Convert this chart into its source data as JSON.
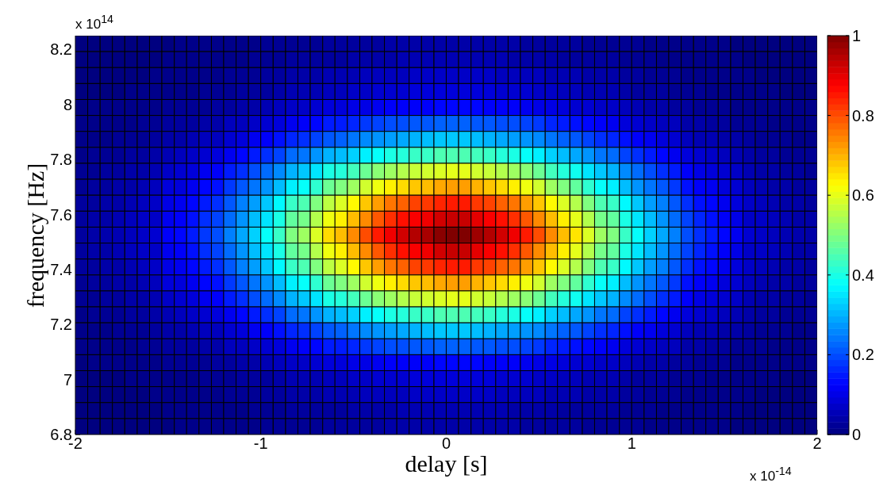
{
  "chart_data": {
    "type": "heatmap",
    "xlabel": "delay [s]",
    "ylabel": "frequency [Hz]",
    "annotations": [
      "x 10$^{14}$",
      "x 10$^{-14}$"
    ],
    "x": [
      -1.967,
      -1.9,
      -1.833,
      -1.767,
      -1.7,
      -1.633,
      -1.567,
      -1.5,
      -1.433,
      -1.367,
      -1.3,
      -1.233,
      -1.167,
      -1.1,
      -1.033,
      -0.967,
      -0.9,
      -0.833,
      -0.767,
      -0.7,
      -0.633,
      -0.567,
      -0.5,
      -0.433,
      -0.367,
      -0.3,
      -0.233,
      -0.167,
      -0.1,
      -0.033,
      0.033,
      0.1,
      0.167,
      0.233,
      0.3,
      0.367,
      0.433,
      0.5,
      0.567,
      0.633,
      0.7,
      0.767,
      0.833,
      0.9,
      0.967,
      1.033,
      1.1,
      1.167,
      1.233,
      1.3,
      1.367,
      1.433,
      1.5,
      1.567,
      1.633,
      1.7,
      1.767,
      1.833,
      1.9,
      1.967
    ],
    "y": [
      8.221,
      8.163,
      8.105,
      8.047,
      7.989,
      7.931,
      7.873,
      7.815,
      7.757,
      7.699,
      7.641,
      7.583,
      7.525,
      7.467,
      7.409,
      7.351,
      7.293,
      7.235,
      7.177,
      7.119,
      7.061,
      7.003,
      6.945,
      6.887,
      6.829
    ],
    "xlim": [
      -2,
      2
    ],
    "xticks": [
      -2,
      -1,
      0,
      1,
      2
    ],
    "ylim": [
      6.8,
      8.25
    ],
    "yticks": [
      6.8,
      7,
      7.2,
      7.4,
      7.6,
      7.8,
      8,
      8.2
    ],
    "clim": [
      0,
      1
    ],
    "cticks": [
      0,
      0.2,
      0.4,
      0.6,
      0.8,
      1
    ],
    "cells": [
      [
        0,
        0,
        0,
        0,
        0,
        0,
        0,
        0,
        0.01,
        0.01,
        0.01,
        0.01,
        0.01,
        0.01,
        0.01,
        0.02,
        0.02,
        0.02,
        0.02,
        0.02,
        0.03,
        0.03,
        0.03,
        0.03,
        0.03,
        0.04,
        0.04,
        0.04,
        0.04,
        0.04,
        0.04,
        0.04,
        0.04,
        0.04,
        0.04,
        0.04,
        0.03,
        0.03,
        0.03,
        0.03,
        0.03,
        0.02,
        0.02,
        0.02,
        0.02,
        0.02,
        0.01,
        0.01,
        0.01,
        0.01,
        0.01,
        0.01,
        0.01,
        0,
        0,
        0,
        0,
        0,
        0,
        0
      ],
      [
        0,
        0,
        0,
        0,
        0,
        0,
        0,
        0.01,
        0.01,
        0.01,
        0.01,
        0.01,
        0.01,
        0.01,
        0.02,
        0.02,
        0.02,
        0.03,
        0.03,
        0.03,
        0.03,
        0.03,
        0.04,
        0.04,
        0.04,
        0.04,
        0.05,
        0.05,
        0.05,
        0.05,
        0.05,
        0.05,
        0.05,
        0.05,
        0.05,
        0.04,
        0.04,
        0.04,
        0.04,
        0.03,
        0.03,
        0.03,
        0.03,
        0.03,
        0.02,
        0.02,
        0.02,
        0.01,
        0.01,
        0.01,
        0.01,
        0.01,
        0.01,
        0.01,
        0,
        0,
        0,
        0,
        0,
        0
      ],
      [
        0,
        0,
        0,
        0,
        0,
        0,
        0.01,
        0.01,
        0.01,
        0.01,
        0.01,
        0.01,
        0.02,
        0.02,
        0.02,
        0.03,
        0.03,
        0.04,
        0.04,
        0.04,
        0.05,
        0.05,
        0.05,
        0.06,
        0.06,
        0.06,
        0.06,
        0.07,
        0.07,
        0.07,
        0.07,
        0.07,
        0.07,
        0.07,
        0.06,
        0.06,
        0.06,
        0.06,
        0.05,
        0.05,
        0.05,
        0.04,
        0.04,
        0.04,
        0.03,
        0.03,
        0.02,
        0.02,
        0.02,
        0.01,
        0.01,
        0.01,
        0.01,
        0.01,
        0.01,
        0,
        0,
        0,
        0,
        0
      ],
      [
        0,
        0,
        0,
        0,
        0.01,
        0.01,
        0.01,
        0.01,
        0.01,
        0.01,
        0.02,
        0.02,
        0.02,
        0.03,
        0.03,
        0.03,
        0.04,
        0.05,
        0.05,
        0.05,
        0.06,
        0.06,
        0.07,
        0.07,
        0.08,
        0.08,
        0.08,
        0.09,
        0.09,
        0.09,
        0.09,
        0.09,
        0.09,
        0.09,
        0.08,
        0.08,
        0.08,
        0.07,
        0.07,
        0.06,
        0.06,
        0.05,
        0.05,
        0.05,
        0.04,
        0.03,
        0.03,
        0.03,
        0.02,
        0.02,
        0.02,
        0.01,
        0.01,
        0.01,
        0.01,
        0.01,
        0.01,
        0,
        0,
        0
      ],
      [
        0,
        0.01,
        0.01,
        0.01,
        0.01,
        0.01,
        0.01,
        0.02,
        0.02,
        0.02,
        0.02,
        0.03,
        0.03,
        0.04,
        0.04,
        0.05,
        0.06,
        0.07,
        0.07,
        0.08,
        0.09,
        0.09,
        0.1,
        0.1,
        0.11,
        0.12,
        0.12,
        0.12,
        0.12,
        0.13,
        0.13,
        0.13,
        0.13,
        0.12,
        0.12,
        0.12,
        0.11,
        0.1,
        0.1,
        0.09,
        0.08,
        0.08,
        0.07,
        0.07,
        0.06,
        0.05,
        0.04,
        0.04,
        0.03,
        0.03,
        0.02,
        0.02,
        0.02,
        0.01,
        0.01,
        0.01,
        0.01,
        0.01,
        0.01,
        0.01
      ],
      [
        0.01,
        0.01,
        0.01,
        0.01,
        0.01,
        0.02,
        0.02,
        0.03,
        0.03,
        0.03,
        0.04,
        0.04,
        0.06,
        0.06,
        0.07,
        0.08,
        0.09,
        0.11,
        0.12,
        0.13,
        0.15,
        0.15,
        0.16,
        0.18,
        0.19,
        0.2,
        0.2,
        0.21,
        0.21,
        0.22,
        0.22,
        0.22,
        0.21,
        0.21,
        0.2,
        0.2,
        0.19,
        0.18,
        0.16,
        0.15,
        0.14,
        0.13,
        0.12,
        0.11,
        0.09,
        0.08,
        0.07,
        0.06,
        0.06,
        0.04,
        0.04,
        0.03,
        0.03,
        0.02,
        0.02,
        0.02,
        0.01,
        0.01,
        0.01,
        0.01
      ],
      [
        0.01,
        0.01,
        0.01,
        0.02,
        0.02,
        0.02,
        0.03,
        0.04,
        0.04,
        0.05,
        0.06,
        0.06,
        0.08,
        0.09,
        0.11,
        0.12,
        0.14,
        0.16,
        0.17,
        0.19,
        0.21,
        0.22,
        0.24,
        0.26,
        0.27,
        0.28,
        0.29,
        0.3,
        0.31,
        0.32,
        0.32,
        0.32,
        0.31,
        0.3,
        0.29,
        0.28,
        0.27,
        0.26,
        0.24,
        0.22,
        0.21,
        0.19,
        0.17,
        0.16,
        0.14,
        0.12,
        0.11,
        0.09,
        0.08,
        0.06,
        0.05,
        0.05,
        0.04,
        0.04,
        0.03,
        0.02,
        0.02,
        0.02,
        0.01,
        0.01
      ],
      [
        0.01,
        0.02,
        0.02,
        0.02,
        0.03,
        0.03,
        0.04,
        0.05,
        0.06,
        0.07,
        0.08,
        0.09,
        0.11,
        0.13,
        0.15,
        0.17,
        0.19,
        0.23,
        0.24,
        0.27,
        0.3,
        0.31,
        0.33,
        0.36,
        0.38,
        0.4,
        0.41,
        0.43,
        0.43,
        0.45,
        0.45,
        0.45,
        0.44,
        0.43,
        0.41,
        0.4,
        0.38,
        0.36,
        0.33,
        0.31,
        0.29,
        0.27,
        0.24,
        0.23,
        0.19,
        0.17,
        0.15,
        0.13,
        0.11,
        0.09,
        0.08,
        0.07,
        0.06,
        0.05,
        0.04,
        0.03,
        0.03,
        0.02,
        0.02,
        0.02
      ],
      [
        0.02,
        0.02,
        0.03,
        0.03,
        0.04,
        0.04,
        0.05,
        0.07,
        0.08,
        0.09,
        0.11,
        0.12,
        0.15,
        0.17,
        0.2,
        0.23,
        0.26,
        0.3,
        0.32,
        0.35,
        0.4,
        0.41,
        0.44,
        0.48,
        0.51,
        0.53,
        0.55,
        0.57,
        0.58,
        0.59,
        0.6,
        0.6,
        0.58,
        0.57,
        0.55,
        0.53,
        0.51,
        0.48,
        0.44,
        0.41,
        0.39,
        0.35,
        0.32,
        0.3,
        0.26,
        0.23,
        0.2,
        0.17,
        0.15,
        0.12,
        0.1,
        0.09,
        0.08,
        0.07,
        0.05,
        0.04,
        0.04,
        0.03,
        0.03,
        0.02
      ],
      [
        0.02,
        0.03,
        0.03,
        0.04,
        0.04,
        0.05,
        0.06,
        0.09,
        0.09,
        0.11,
        0.13,
        0.14,
        0.18,
        0.21,
        0.24,
        0.27,
        0.31,
        0.36,
        0.38,
        0.42,
        0.48,
        0.5,
        0.53,
        0.58,
        0.61,
        0.64,
        0.66,
        0.68,
        0.69,
        0.71,
        0.72,
        0.72,
        0.7,
        0.68,
        0.66,
        0.64,
        0.61,
        0.58,
        0.53,
        0.5,
        0.47,
        0.42,
        0.38,
        0.36,
        0.31,
        0.27,
        0.24,
        0.21,
        0.18,
        0.14,
        0.12,
        0.11,
        0.09,
        0.08,
        0.06,
        0.05,
        0.04,
        0.04,
        0.03,
        0.03
      ],
      [
        0.03,
        0.03,
        0.04,
        0.04,
        0.05,
        0.06,
        0.07,
        0.1,
        0.11,
        0.13,
        0.15,
        0.17,
        0.21,
        0.25,
        0.28,
        0.32,
        0.37,
        0.43,
        0.45,
        0.5,
        0.56,
        0.59,
        0.63,
        0.68,
        0.72,
        0.76,
        0.78,
        0.81,
        0.82,
        0.84,
        0.85,
        0.85,
        0.82,
        0.81,
        0.78,
        0.76,
        0.72,
        0.68,
        0.63,
        0.59,
        0.55,
        0.5,
        0.45,
        0.43,
        0.37,
        0.32,
        0.28,
        0.25,
        0.21,
        0.17,
        0.14,
        0.13,
        0.11,
        0.09,
        0.07,
        0.06,
        0.05,
        0.04,
        0.04,
        0.03
      ],
      [
        0.03,
        0.04,
        0.04,
        0.05,
        0.06,
        0.07,
        0.07,
        0.11,
        0.12,
        0.14,
        0.17,
        0.19,
        0.23,
        0.27,
        0.31,
        0.35,
        0.4,
        0.47,
        0.49,
        0.55,
        0.61,
        0.64,
        0.69,
        0.74,
        0.79,
        0.83,
        0.86,
        0.88,
        0.89,
        0.92,
        0.93,
        0.93,
        0.9,
        0.88,
        0.86,
        0.83,
        0.79,
        0.74,
        0.69,
        0.64,
        0.6,
        0.55,
        0.49,
        0.47,
        0.4,
        0.35,
        0.31,
        0.27,
        0.23,
        0.19,
        0.16,
        0.14,
        0.12,
        0.1,
        0.07,
        0.07,
        0.06,
        0.05,
        0.04,
        0.04
      ],
      [
        0.03,
        0.04,
        0.045,
        0.05,
        0.06,
        0.07,
        0.08,
        0.12,
        0.13,
        0.15,
        0.18,
        0.2,
        0.25,
        0.29,
        0.33,
        0.38,
        0.43,
        0.5,
        0.53,
        0.59,
        0.66,
        0.69,
        0.74,
        0.8,
        0.85,
        0.89,
        0.92,
        0.95,
        0.96,
        0.99,
        1,
        1,
        0.97,
        0.95,
        0.92,
        0.89,
        0.85,
        0.8,
        0.74,
        0.69,
        0.65,
        0.59,
        0.53,
        0.5,
        0.43,
        0.38,
        0.33,
        0.29,
        0.25,
        0.2,
        0.17,
        0.15,
        0.13,
        0.11,
        0.08,
        0.07,
        0.06,
        0.05,
        0.045,
        0.04
      ],
      [
        0.03,
        0.04,
        0.04,
        0.05,
        0.06,
        0.07,
        0.07,
        0.11,
        0.12,
        0.14,
        0.17,
        0.19,
        0.23,
        0.27,
        0.31,
        0.35,
        0.4,
        0.47,
        0.49,
        0.55,
        0.61,
        0.64,
        0.69,
        0.74,
        0.79,
        0.83,
        0.86,
        0.88,
        0.89,
        0.92,
        0.93,
        0.93,
        0.9,
        0.88,
        0.86,
        0.83,
        0.79,
        0.74,
        0.69,
        0.64,
        0.6,
        0.55,
        0.49,
        0.47,
        0.4,
        0.35,
        0.31,
        0.27,
        0.23,
        0.19,
        0.16,
        0.14,
        0.12,
        0.1,
        0.07,
        0.07,
        0.06,
        0.05,
        0.04,
        0.04
      ],
      [
        0.03,
        0.03,
        0.04,
        0.04,
        0.05,
        0.06,
        0.07,
        0.1,
        0.11,
        0.13,
        0.15,
        0.17,
        0.21,
        0.25,
        0.28,
        0.32,
        0.37,
        0.43,
        0.45,
        0.5,
        0.56,
        0.59,
        0.63,
        0.68,
        0.72,
        0.76,
        0.78,
        0.81,
        0.82,
        0.84,
        0.85,
        0.85,
        0.82,
        0.81,
        0.78,
        0.76,
        0.72,
        0.68,
        0.63,
        0.59,
        0.55,
        0.5,
        0.45,
        0.43,
        0.37,
        0.32,
        0.28,
        0.25,
        0.21,
        0.17,
        0.14,
        0.13,
        0.11,
        0.09,
        0.07,
        0.06,
        0.05,
        0.04,
        0.04,
        0.03
      ],
      [
        0.02,
        0.03,
        0.03,
        0.04,
        0.04,
        0.05,
        0.06,
        0.09,
        0.09,
        0.11,
        0.13,
        0.14,
        0.18,
        0.21,
        0.24,
        0.27,
        0.31,
        0.36,
        0.38,
        0.42,
        0.48,
        0.5,
        0.53,
        0.58,
        0.61,
        0.64,
        0.66,
        0.68,
        0.69,
        0.71,
        0.72,
        0.72,
        0.7,
        0.68,
        0.66,
        0.64,
        0.61,
        0.58,
        0.53,
        0.5,
        0.47,
        0.42,
        0.38,
        0.36,
        0.31,
        0.27,
        0.24,
        0.21,
        0.18,
        0.14,
        0.12,
        0.11,
        0.09,
        0.08,
        0.06,
        0.05,
        0.04,
        0.04,
        0.03,
        0.03
      ],
      [
        0.02,
        0.02,
        0.03,
        0.03,
        0.04,
        0.04,
        0.05,
        0.07,
        0.08,
        0.09,
        0.11,
        0.12,
        0.15,
        0.17,
        0.2,
        0.23,
        0.26,
        0.3,
        0.32,
        0.35,
        0.4,
        0.41,
        0.44,
        0.48,
        0.51,
        0.53,
        0.55,
        0.57,
        0.58,
        0.59,
        0.6,
        0.6,
        0.58,
        0.57,
        0.55,
        0.53,
        0.51,
        0.48,
        0.44,
        0.41,
        0.39,
        0.35,
        0.32,
        0.3,
        0.26,
        0.23,
        0.2,
        0.17,
        0.15,
        0.12,
        0.1,
        0.09,
        0.08,
        0.07,
        0.05,
        0.04,
        0.04,
        0.03,
        0.03,
        0.02
      ],
      [
        0.01,
        0.02,
        0.02,
        0.02,
        0.03,
        0.03,
        0.04,
        0.05,
        0.06,
        0.07,
        0.08,
        0.09,
        0.11,
        0.13,
        0.15,
        0.17,
        0.19,
        0.23,
        0.24,
        0.27,
        0.3,
        0.31,
        0.33,
        0.36,
        0.38,
        0.4,
        0.41,
        0.43,
        0.43,
        0.45,
        0.45,
        0.45,
        0.44,
        0.43,
        0.41,
        0.4,
        0.38,
        0.36,
        0.33,
        0.31,
        0.29,
        0.27,
        0.24,
        0.23,
        0.19,
        0.17,
        0.15,
        0.13,
        0.11,
        0.09,
        0.08,
        0.07,
        0.06,
        0.05,
        0.04,
        0.03,
        0.03,
        0.02,
        0.02,
        0.02
      ],
      [
        0.01,
        0.01,
        0.01,
        0.02,
        0.02,
        0.02,
        0.03,
        0.04,
        0.04,
        0.05,
        0.06,
        0.06,
        0.08,
        0.09,
        0.11,
        0.12,
        0.14,
        0.16,
        0.17,
        0.19,
        0.21,
        0.22,
        0.24,
        0.26,
        0.27,
        0.28,
        0.29,
        0.3,
        0.31,
        0.32,
        0.32,
        0.32,
        0.31,
        0.3,
        0.29,
        0.28,
        0.27,
        0.26,
        0.24,
        0.22,
        0.21,
        0.19,
        0.17,
        0.16,
        0.14,
        0.12,
        0.11,
        0.09,
        0.08,
        0.06,
        0.05,
        0.05,
        0.04,
        0.04,
        0.03,
        0.02,
        0.02,
        0.02,
        0.01,
        0.01
      ],
      [
        0.01,
        0.01,
        0.01,
        0.01,
        0.01,
        0.02,
        0.02,
        0.03,
        0.03,
        0.03,
        0.04,
        0.04,
        0.06,
        0.06,
        0.07,
        0.08,
        0.09,
        0.11,
        0.12,
        0.13,
        0.15,
        0.15,
        0.16,
        0.18,
        0.19,
        0.2,
        0.2,
        0.21,
        0.21,
        0.22,
        0.22,
        0.22,
        0.21,
        0.21,
        0.2,
        0.2,
        0.19,
        0.18,
        0.16,
        0.15,
        0.14,
        0.13,
        0.12,
        0.11,
        0.09,
        0.08,
        0.07,
        0.06,
        0.06,
        0.04,
        0.04,
        0.03,
        0.03,
        0.02,
        0.02,
        0.02,
        0.01,
        0.01,
        0.01,
        0.01
      ],
      [
        0,
        0.01,
        0.01,
        0.01,
        0.01,
        0.01,
        0.01,
        0.02,
        0.02,
        0.02,
        0.02,
        0.03,
        0.03,
        0.04,
        0.04,
        0.05,
        0.06,
        0.07,
        0.07,
        0.08,
        0.09,
        0.09,
        0.1,
        0.1,
        0.11,
        0.12,
        0.12,
        0.12,
        0.12,
        0.13,
        0.13,
        0.13,
        0.13,
        0.12,
        0.12,
        0.12,
        0.11,
        0.1,
        0.1,
        0.09,
        0.08,
        0.08,
        0.07,
        0.07,
        0.06,
        0.05,
        0.04,
        0.04,
        0.03,
        0.03,
        0.02,
        0.02,
        0.02,
        0.01,
        0.01,
        0.01,
        0.01,
        0.01,
        0.01,
        0.01
      ],
      [
        0,
        0,
        0,
        0,
        0.01,
        0.01,
        0.01,
        0.01,
        0.01,
        0.01,
        0.02,
        0.02,
        0.02,
        0.03,
        0.03,
        0.03,
        0.04,
        0.05,
        0.05,
        0.05,
        0.06,
        0.06,
        0.07,
        0.07,
        0.08,
        0.08,
        0.08,
        0.09,
        0.09,
        0.09,
        0.09,
        0.09,
        0.09,
        0.09,
        0.08,
        0.08,
        0.08,
        0.07,
        0.07,
        0.06,
        0.06,
        0.05,
        0.05,
        0.05,
        0.04,
        0.03,
        0.03,
        0.03,
        0.02,
        0.02,
        0.02,
        0.01,
        0.01,
        0.01,
        0.01,
        0.01,
        0.01,
        0,
        0,
        0
      ],
      [
        0,
        0,
        0,
        0,
        0,
        0,
        0.01,
        0.01,
        0.01,
        0.01,
        0.01,
        0.01,
        0.02,
        0.02,
        0.02,
        0.03,
        0.03,
        0.04,
        0.04,
        0.04,
        0.05,
        0.05,
        0.05,
        0.06,
        0.06,
        0.06,
        0.06,
        0.07,
        0.07,
        0.07,
        0.07,
        0.07,
        0.07,
        0.07,
        0.06,
        0.06,
        0.06,
        0.06,
        0.05,
        0.05,
        0.05,
        0.04,
        0.04,
        0.04,
        0.03,
        0.03,
        0.02,
        0.02,
        0.02,
        0.01,
        0.01,
        0.01,
        0.01,
        0.01,
        0.01,
        0,
        0,
        0,
        0,
        0
      ],
      [
        0,
        0,
        0,
        0,
        0,
        0,
        0,
        0.01,
        0.01,
        0.01,
        0.01,
        0.01,
        0.01,
        0.01,
        0.02,
        0.02,
        0.02,
        0.03,
        0.03,
        0.03,
        0.03,
        0.03,
        0.04,
        0.04,
        0.04,
        0.04,
        0.05,
        0.05,
        0.05,
        0.05,
        0.05,
        0.05,
        0.05,
        0.05,
        0.05,
        0.04,
        0.04,
        0.04,
        0.04,
        0.03,
        0.03,
        0.03,
        0.03,
        0.03,
        0.02,
        0.02,
        0.02,
        0.01,
        0.01,
        0.01,
        0.01,
        0.01,
        0.01,
        0.01,
        0,
        0,
        0,
        0,
        0,
        0
      ],
      [
        0,
        0,
        0,
        0,
        0,
        0,
        0,
        0,
        0.01,
        0.01,
        0.01,
        0.01,
        0.01,
        0.01,
        0.01,
        0.02,
        0.02,
        0.02,
        0.02,
        0.02,
        0.03,
        0.03,
        0.03,
        0.03,
        0.03,
        0.04,
        0.04,
        0.04,
        0.04,
        0.04,
        0.04,
        0.04,
        0.04,
        0.04,
        0.04,
        0.04,
        0.03,
        0.03,
        0.03,
        0.03,
        0.03,
        0.02,
        0.02,
        0.02,
        0.02,
        0.02,
        0.01,
        0.01,
        0.01,
        0.01,
        0.01,
        0.01,
        0.01,
        0,
        0,
        0,
        0,
        0,
        0,
        0
      ]
    ]
  }
}
